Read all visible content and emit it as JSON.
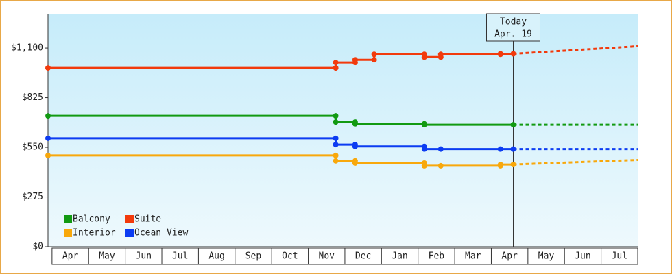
{
  "chart_data": {
    "type": "step-line",
    "categories": [
      "Apr",
      "May",
      "Jun",
      "Jul",
      "Aug",
      "Sep",
      "Oct",
      "Nov",
      "Dec",
      "Jan",
      "Feb",
      "Mar",
      "Apr",
      "May",
      "Jun",
      "Jul"
    ],
    "xlim": [
      -0.11,
      16
    ],
    "ylim": [
      0,
      1290
    ],
    "yticks": [
      {
        "value": 0,
        "label": "$0"
      },
      {
        "value": 275,
        "label": "$275"
      },
      {
        "value": 550,
        "label": "$550"
      },
      {
        "value": 825,
        "label": "$825"
      },
      {
        "value": 1100,
        "label": "$1,100"
      }
    ],
    "series": [
      {
        "name": "Balcony",
        "color": "#129a12",
        "x": [
          -0.11,
          7.75,
          7.75,
          8.28,
          8.28,
          10.17,
          10.17,
          12.6
        ],
        "values": [
          724,
          724,
          690,
          690,
          680,
          680,
          675,
          675
        ],
        "projection": {
          "x": [
            12.6,
            16
          ],
          "values": [
            675,
            675
          ]
        }
      },
      {
        "name": "Suite",
        "color": "#f23a0c",
        "x": [
          -0.11,
          7.75,
          7.75,
          8.28,
          8.28,
          8.8,
          8.8,
          10.17,
          10.17,
          10.62,
          10.62,
          12.25,
          12.25,
          12.6
        ],
        "values": [
          990,
          990,
          1020,
          1020,
          1035,
          1035,
          1065,
          1065,
          1050,
          1050,
          1065,
          1065,
          1068,
          1068
        ],
        "projection": {
          "x": [
            12.6,
            16
          ],
          "values": [
            1068,
            1110
          ]
        }
      },
      {
        "name": "Interior",
        "color": "#f8a80c",
        "x": [
          -0.11,
          7.75,
          7.75,
          8.28,
          8.28,
          10.17,
          10.17,
          10.62,
          12.25,
          12.25,
          12.6
        ],
        "values": [
          505,
          505,
          475,
          475,
          463,
          463,
          448,
          448,
          448,
          455,
          455
        ],
        "projection": {
          "x": [
            12.6,
            16
          ],
          "values": [
            455,
            480
          ]
        }
      },
      {
        "name": "Ocean View",
        "color": "#0c3cf2",
        "x": [
          -0.11,
          7.75,
          7.75,
          8.28,
          8.28,
          10.17,
          10.17,
          10.62,
          12.25,
          12.6
        ],
        "values": [
          600,
          600,
          565,
          565,
          555,
          555,
          540,
          540,
          540,
          540
        ],
        "projection": {
          "x": [
            12.6,
            16
          ],
          "values": [
            540,
            540
          ]
        }
      }
    ],
    "today": {
      "x": 12.6,
      "label": [
        "Today",
        "Apr. 19"
      ]
    }
  }
}
